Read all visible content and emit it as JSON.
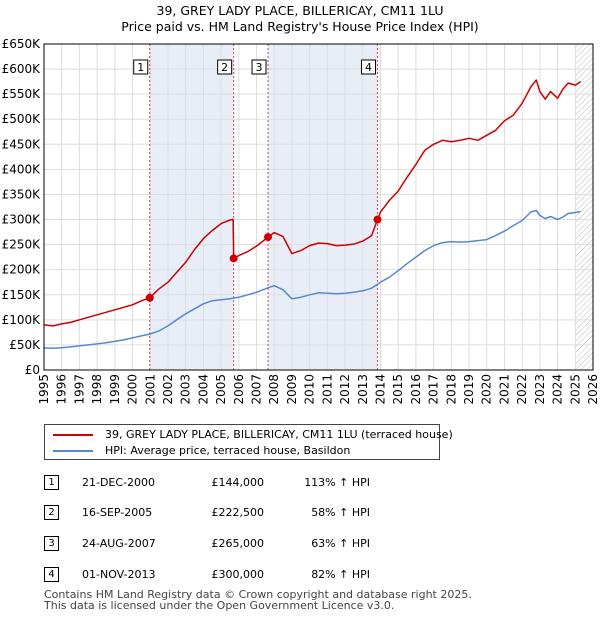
{
  "title": {
    "line1": "39, GREY LADY PLACE, BILLERICAY, CM11 1LU",
    "line2": "Price paid vs. HM Land Registry's House Price Index (HPI)"
  },
  "colors": {
    "property": "#cc0000",
    "hpi": "#5588cc",
    "shade": "#e8eef8",
    "grid": "#dddddd",
    "marker_line": "#dd4444"
  },
  "chart_data": {
    "type": "line",
    "title": "Price paid vs. HM Land Registry's House Price Index (HPI)",
    "xlabel": "",
    "ylabel": "",
    "xlim": [
      1995,
      2026
    ],
    "ylim": [
      0,
      650000
    ],
    "x_ticks": [
      "1995",
      "1996",
      "1997",
      "1998",
      "1999",
      "2000",
      "2001",
      "2002",
      "2003",
      "2004",
      "2005",
      "2006",
      "2007",
      "2008",
      "2009",
      "2010",
      "2011",
      "2012",
      "2013",
      "2014",
      "2015",
      "2016",
      "2017",
      "2018",
      "2019",
      "2020",
      "2021",
      "2022",
      "2023",
      "2024",
      "2025",
      "2026"
    ],
    "y_ticks": [
      {
        "value": 0,
        "label": "£0"
      },
      {
        "value": 50000,
        "label": "£50K"
      },
      {
        "value": 100000,
        "label": "£100K"
      },
      {
        "value": 150000,
        "label": "£150K"
      },
      {
        "value": 200000,
        "label": "£200K"
      },
      {
        "value": 250000,
        "label": "£250K"
      },
      {
        "value": 300000,
        "label": "£300K"
      },
      {
        "value": 350000,
        "label": "£350K"
      },
      {
        "value": 400000,
        "label": "£400K"
      },
      {
        "value": 450000,
        "label": "£450K"
      },
      {
        "value": 500000,
        "label": "£500K"
      },
      {
        "value": 550000,
        "label": "£550K"
      },
      {
        "value": 600000,
        "label": "£600K"
      },
      {
        "value": 650000,
        "label": "£650K"
      }
    ],
    "grid": true,
    "shaded_ranges": [
      [
        2000.97,
        2005.71
      ],
      [
        2007.65,
        2013.83
      ]
    ],
    "hatched_after": 2025.0,
    "series": [
      {
        "name": "39, GREY LADY PLACE, BILLERICAY, CM11 1LU (terraced house)",
        "x": [
          1995.0,
          1995.5,
          1996.0,
          1996.5,
          1997.0,
          1997.5,
          1998.0,
          1998.5,
          1999.0,
          1999.5,
          2000.0,
          2000.5,
          2000.97,
          2001.5,
          2002.0,
          2002.5,
          2003.0,
          2003.5,
          2004.0,
          2004.5,
          2005.0,
          2005.5,
          2005.68,
          2005.71,
          2006.0,
          2006.5,
          2007.0,
          2007.65,
          2008.0,
          2008.5,
          2009.0,
          2009.5,
          2010.0,
          2010.5,
          2011.0,
          2011.5,
          2012.0,
          2012.5,
          2013.0,
          2013.5,
          2013.83,
          2014.0,
          2014.5,
          2015.0,
          2015.5,
          2016.0,
          2016.5,
          2017.0,
          2017.5,
          2018.0,
          2018.5,
          2019.0,
          2019.5,
          2020.0,
          2020.5,
          2021.0,
          2021.5,
          2022.0,
          2022.5,
          2022.8,
          2023.0,
          2023.3,
          2023.6,
          2024.0,
          2024.3,
          2024.6,
          2025.0,
          2025.3
        ],
        "values": [
          90000,
          88000,
          92000,
          95000,
          100000,
          105000,
          110000,
          115000,
          120000,
          125000,
          130000,
          138000,
          144000,
          162000,
          175000,
          195000,
          215000,
          240000,
          262000,
          278000,
          292000,
          299000,
          300000,
          222500,
          228000,
          236000,
          247000,
          265000,
          274000,
          266000,
          232000,
          238000,
          248000,
          253000,
          252000,
          248000,
          249000,
          251000,
          257000,
          268000,
          300000,
          315000,
          338000,
          357000,
          384000,
          410000,
          438000,
          450000,
          458000,
          455000,
          458000,
          462000,
          458000,
          468000,
          478000,
          497000,
          508000,
          532000,
          565000,
          578000,
          555000,
          540000,
          555000,
          542000,
          560000,
          572000,
          568000,
          575000
        ]
      },
      {
        "name": "HPI: Average price, terraced house, Basildon",
        "x": [
          1995.0,
          1995.5,
          1996.0,
          1996.5,
          1997.0,
          1997.5,
          1998.0,
          1998.5,
          1999.0,
          1999.5,
          2000.0,
          2000.5,
          2001.0,
          2001.5,
          2002.0,
          2002.5,
          2003.0,
          2003.5,
          2004.0,
          2004.5,
          2005.0,
          2005.5,
          2006.0,
          2006.5,
          2007.0,
          2007.5,
          2008.0,
          2008.5,
          2009.0,
          2009.5,
          2010.0,
          2010.5,
          2011.0,
          2011.5,
          2012.0,
          2012.5,
          2013.0,
          2013.5,
          2014.0,
          2014.5,
          2015.0,
          2015.5,
          2016.0,
          2016.5,
          2017.0,
          2017.5,
          2018.0,
          2018.5,
          2019.0,
          2019.5,
          2020.0,
          2020.5,
          2021.0,
          2021.5,
          2022.0,
          2022.5,
          2022.8,
          2023.0,
          2023.3,
          2023.6,
          2024.0,
          2024.3,
          2024.6,
          2025.0,
          2025.3
        ],
        "values": [
          44000,
          43500,
          44500,
          46000,
          48000,
          50000,
          52000,
          54500,
          57000,
          60000,
          64000,
          68000,
          72000,
          78000,
          88000,
          100000,
          112000,
          122000,
          132000,
          138000,
          140000,
          142000,
          145000,
          150000,
          155000,
          162000,
          168000,
          160000,
          142000,
          145000,
          150000,
          154000,
          153000,
          152000,
          153000,
          155000,
          158000,
          163000,
          175000,
          185000,
          198000,
          212000,
          225000,
          238000,
          248000,
          254000,
          256000,
          255000,
          256000,
          258000,
          260000,
          268000,
          277000,
          288000,
          298000,
          315000,
          318000,
          308000,
          302000,
          306000,
          300000,
          305000,
          312000,
          314000,
          316000
        ]
      }
    ],
    "markers": [
      {
        "label": "1",
        "x": 2000.97,
        "value": 144000
      },
      {
        "label": "2",
        "x": 2005.71,
        "value": 222500
      },
      {
        "label": "3",
        "x": 2007.65,
        "value": 265000
      },
      {
        "label": "4",
        "x": 2013.83,
        "value": 300000
      }
    ]
  },
  "legend": {
    "property_label": "39, GREY LADY PLACE, BILLERICAY, CM11 1LU (terraced house)",
    "hpi_label": "HPI: Average price, terraced house, Basildon"
  },
  "sales": [
    {
      "num": "1",
      "date": "21-DEC-2000",
      "price": "£144,000",
      "hpi": "113% ↑ HPI"
    },
    {
      "num": "2",
      "date": "16-SEP-2005",
      "price": "£222,500",
      "hpi": "58% ↑ HPI"
    },
    {
      "num": "3",
      "date": "24-AUG-2007",
      "price": "£265,000",
      "hpi": "63% ↑ HPI"
    },
    {
      "num": "4",
      "date": "01-NOV-2013",
      "price": "£300,000",
      "hpi": "82% ↑ HPI"
    }
  ],
  "footer": {
    "line1": "Contains HM Land Registry data © Crown copyright and database right 2025.",
    "line2": "This data is licensed under the Open Government Licence v3.0."
  }
}
